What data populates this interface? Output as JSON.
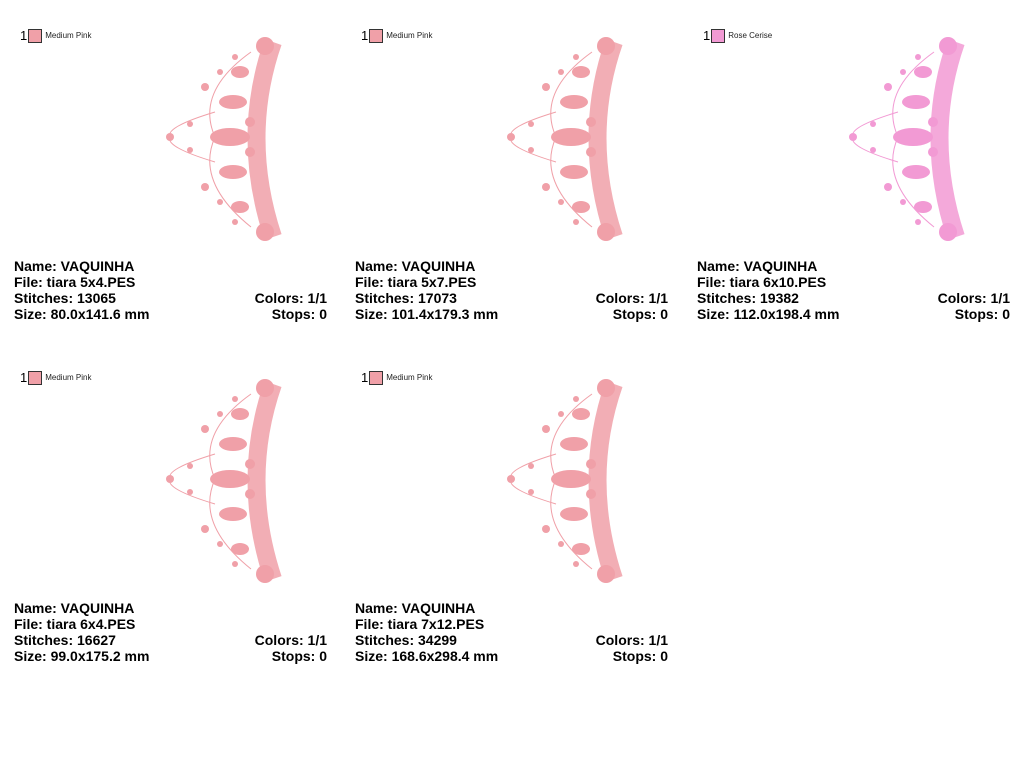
{
  "designs": [
    {
      "index": "1",
      "color_name": "Medium Pink",
      "color": "#f0a0a8",
      "name": "Name: VAQUINHA",
      "file": "File: tiara 5x4.PES",
      "stitches": "Stitches: 13065",
      "size": "Size: 80.0x141.6 mm",
      "colors": "Colors: 1/1",
      "stops": "Stops: 0"
    },
    {
      "index": "1",
      "color_name": "Medium Pink",
      "color": "#f0a0a8",
      "name": "Name: VAQUINHA",
      "file": "File: tiara 5x7.PES",
      "stitches": "Stitches: 17073",
      "size": "Size: 101.4x179.3 mm",
      "colors": "Colors: 1/1",
      "stops": "Stops: 0"
    },
    {
      "index": "1",
      "color_name": "Rose Cerise",
      "color": "#f29ad4",
      "name": "Name: VAQUINHA",
      "file": "File: tiara 6x10.PES",
      "stitches": "Stitches: 19382",
      "size": "Size: 112.0x198.4 mm",
      "colors": "Colors: 1/1",
      "stops": "Stops: 0"
    },
    {
      "index": "1",
      "color_name": "Medium Pink",
      "color": "#f0a0a8",
      "name": "Name: VAQUINHA",
      "file": "File: tiara 6x4.PES",
      "stitches": "Stitches: 16627",
      "size": "Size: 99.0x175.2 mm",
      "colors": "Colors: 1/1",
      "stops": "Stops: 0"
    },
    {
      "index": "1",
      "color_name": "Medium Pink",
      "color": "#f0a0a8",
      "name": "Name: VAQUINHA",
      "file": "File: tiara 7x12.PES",
      "stitches": "Stitches: 34299",
      "size": "Size: 168.6x298.4 mm",
      "colors": "Colors: 1/1",
      "stops": "Stops: 0"
    }
  ]
}
